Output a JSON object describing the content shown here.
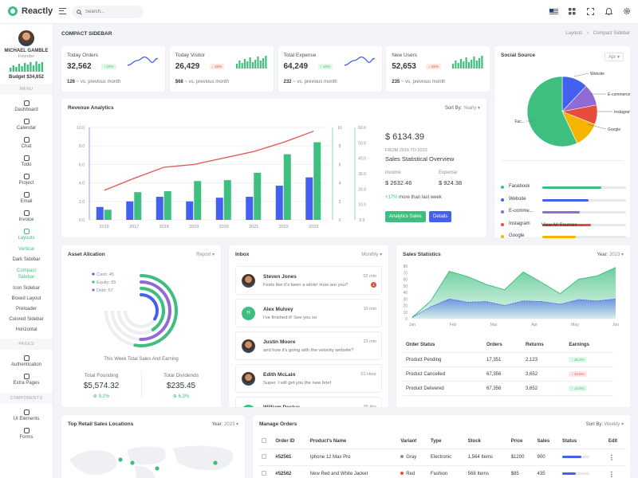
{
  "brand": {
    "name": "Reactly",
    "accent": "#3fbf7f"
  },
  "search": {
    "placeholder": "Search..."
  },
  "user": {
    "name": "MICHAEL GAMBLE",
    "role": "Founder",
    "budget": "Budget $34,652"
  },
  "sidebar": {
    "menu_label": "MENU",
    "items": [
      {
        "label": "Dashboard",
        "icon": "dashboard-icon"
      },
      {
        "label": "Calendar",
        "icon": "calendar-icon"
      },
      {
        "label": "Chat",
        "icon": "chat-icon"
      },
      {
        "label": "Todo",
        "icon": "todo-icon"
      },
      {
        "label": "Project",
        "icon": "project-icon"
      },
      {
        "label": "Email",
        "icon": "email-icon"
      },
      {
        "label": "Invoice",
        "icon": "invoice-icon"
      },
      {
        "label": "Layouts",
        "icon": "layouts-icon"
      }
    ],
    "layout_sub": [
      "Vertical",
      "Dark Sidebar",
      "Compact Sidebar",
      "Icon Sidebar",
      "Boxed Layout",
      "Preloader",
      "Colored Sidebar",
      "Horizontal"
    ],
    "pages_label": "PAGES",
    "pages": [
      {
        "label": "Authentication",
        "icon": "lock-icon"
      },
      {
        "label": "Extra Pages",
        "icon": "pages-icon"
      }
    ],
    "components_label": "COMPONENTS",
    "components": [
      {
        "label": "UI Elements",
        "icon": "ui-elements-icon"
      },
      {
        "label": "Forms",
        "icon": "forms-icon"
      }
    ]
  },
  "page": {
    "title": "COMPACT SIDEBAR",
    "breadcrumb": [
      "Layouts",
      "Compact Sidebar"
    ],
    "breadcrumb_sep": "›"
  },
  "stats": [
    {
      "label": "Today Orders",
      "value": "32,562",
      "badge": "↑ 10%",
      "dir": "up",
      "foot_num": "126",
      "foot_text": " ~ vs. previous month",
      "spark": "line",
      "color": "#4361ee"
    },
    {
      "label": "Today Visitor",
      "value": "26,429",
      "badge": "↓ 22%",
      "dir": "down",
      "foot_num": "$68",
      "foot_text": " ~ vs. previous month",
      "spark": "bars",
      "color": "#3fbf7f"
    },
    {
      "label": "Total Expense",
      "value": "64,249",
      "badge": "↑ 10%",
      "dir": "up",
      "foot_num": "232",
      "foot_text": " ~ vs. previous month",
      "spark": "line",
      "color": "#4361ee"
    },
    {
      "label": "New Users",
      "value": "52,653",
      "badge": "↓ 42%",
      "dir": "down",
      "foot_num": "235",
      "foot_text": " ~ vs. previous month",
      "spark": "bars",
      "color": "#3fbf7f"
    }
  ],
  "social": {
    "title": "Social Source",
    "period": "Apr",
    "rows": [
      {
        "name": "Facebook",
        "color": "#3fbf7f",
        "pct": 0.7
      },
      {
        "name": "Website",
        "color": "#4361ee",
        "pct": 0.55
      },
      {
        "name": "E-comme...",
        "color": "#8e6bd6",
        "pct": 0.45
      },
      {
        "name": "Instagram",
        "color": "#e74c3c",
        "pct": 0.58
      },
      {
        "name": "Google",
        "color": "#f4b400",
        "pct": 0.4
      }
    ],
    "link": "View All Sources →"
  },
  "revenue": {
    "title": "Revenue Analytics",
    "sort_label": "Sort By:",
    "sort_value": "Yearly",
    "amount": "$ 6134.39",
    "range": "FROM 2016 TO 2023",
    "subtitle": "Sales Statistical Overview",
    "income_label": "Income",
    "income": "$ 2632.46",
    "expense_label": "Expense",
    "expense": "$ 924.38",
    "growth": "+17%",
    "growth_text": " more than last week",
    "btn1": "Analytics Sales",
    "btn2": "Details"
  },
  "asset": {
    "title": "Asset Allcation",
    "menu": "Report",
    "legend": [
      "Cash: 45",
      "Equity: 55",
      "Debt: 67"
    ],
    "caption": "This Week Total Sales And Earning",
    "left_label": "Total Founding",
    "left_value": "$5,574.32",
    "left_pct": "9.2%",
    "right_label": "Total Dividends",
    "right_value": "$235.45",
    "right_pct": "6.3%"
  },
  "inbox": {
    "title": "Inbox",
    "period": "Monthly",
    "items": [
      {
        "name": "Steven Jones",
        "msg": "Feels like it's been a while! How are you?",
        "time": "02 min",
        "badge": "1",
        "avatar": "photo"
      },
      {
        "name": "Alex Mulvey",
        "msg": "I've finished it! See you so",
        "time": "10 min",
        "avatar": "H"
      },
      {
        "name": "Justin Moore",
        "msg": "and how it's going with the velocity website?",
        "time": "22 min",
        "avatar": "photo"
      },
      {
        "name": "Edith McLain",
        "msg": "Super, I will get you the new brief",
        "time": "01 Hour",
        "avatar": "photo"
      },
      {
        "name": "William Declue",
        "msg": "",
        "time": "05 Hrs",
        "avatar": "W"
      }
    ]
  },
  "sales": {
    "title": "Sales Statistics",
    "year_label": "Year:",
    "year": "2023",
    "headers": [
      "Order Status",
      "Orders",
      "Returns",
      "Earnings"
    ],
    "rows": [
      {
        "status": "Product Pending",
        "orders": "17,351",
        "returns": "2,123",
        "earn": "↑ 45.3%",
        "dir": "up"
      },
      {
        "status": "Product Cancelled",
        "orders": "67,356",
        "returns": "3,652",
        "earn": "↓ 14.6%",
        "dir": "down"
      },
      {
        "status": "Product Delivered",
        "orders": "67,356",
        "returns": "3,652",
        "earn": "↑ 14.6%",
        "dir": "up"
      }
    ]
  },
  "retail": {
    "title": "Top Retail Sales Locations",
    "year_label": "Year:",
    "year": "2023"
  },
  "orders": {
    "title": "Manage Orders",
    "sort_label": "Sort By:",
    "sort_value": "Weekly",
    "headers": [
      "",
      "Order ID",
      "Product's Name",
      "Variant",
      "Type",
      "Stock",
      "Price",
      "Sales",
      "Status",
      "Edit"
    ],
    "rows": [
      {
        "id": "#52561",
        "name": "Iphone 12 Max Pro",
        "variant": "Gray",
        "vcolor": "#8a8f98",
        "type": "Electronic",
        "stock": "1,564 Items",
        "price": "$1200",
        "sales": "900",
        "status": 0.7
      },
      {
        "id": "#52562",
        "name": "New Red and White Jacket",
        "variant": "Red",
        "vcolor": "#e74c3c",
        "type": "Fashion",
        "stock": "568 Items",
        "price": "$85",
        "sales": "435",
        "status": 0.5
      }
    ]
  },
  "chart_data": [
    {
      "type": "bar",
      "title": "Revenue Analytics",
      "categories": [
        "2016",
        "2017",
        "2018",
        "2019",
        "2020",
        "2021",
        "2022",
        "2023"
      ],
      "series": [
        {
          "color": "#4361ee",
          "values": [
            1.4,
            2,
            2.5,
            2,
            2.4,
            2.5,
            3.7,
            4.6
          ]
        },
        {
          "color": "#3fbf7f",
          "values": [
            1.1,
            3,
            3.1,
            4.2,
            4.3,
            5.1,
            7.1,
            8.4
          ]
        },
        {
          "color": "#e35d5d",
          "type": "line",
          "values": [
            3.2,
            4.5,
            5.7,
            6,
            6.7,
            7.4,
            8.4,
            9.6
          ]
        }
      ],
      "ylim": [
        0,
        10
      ],
      "yticks": [
        "0.0",
        "2.0",
        "4.0",
        "6.0",
        "8.0",
        "10.0"
      ],
      "y2ticks": [
        "0",
        "2",
        "4",
        "6",
        "8",
        "10"
      ],
      "y3ticks": [
        "0.0",
        "10.0",
        "20.0",
        "30.0",
        "40.0",
        "50.0",
        "60.0"
      ]
    },
    {
      "type": "pie",
      "title": "Social Source",
      "slices": [
        {
          "label": "Facebook",
          "value": 57,
          "color": "#3fbf7f"
        },
        {
          "label": "Website",
          "value": 12,
          "color": "#4361ee"
        },
        {
          "label": "E-commerce",
          "value": 10,
          "color": "#8e6bd6"
        },
        {
          "label": "Instagram",
          "value": 9,
          "color": "#e74c3c"
        },
        {
          "label": "Google",
          "value": 12,
          "color": "#f4b400"
        }
      ],
      "labels": [
        "Website",
        "E-commerce",
        "Instagram",
        "Google",
        "Fac..."
      ]
    },
    {
      "type": "area",
      "title": "Sales Statistics",
      "categories": [
        "Jan",
        "Feb",
        "Mar",
        "Apr",
        "May",
        "Jun",
        "Jul",
        "Aug",
        "Sep",
        "Oct",
        "Nov",
        "Dec"
      ],
      "series": [
        {
          "color": "#3fbf7f",
          "values": [
            2,
            27,
            72,
            64,
            52,
            44,
            71,
            55,
            38,
            60,
            65,
            78
          ]
        },
        {
          "color": "#4361ee",
          "values": [
            2,
            18,
            30,
            25,
            26,
            20,
            27,
            26,
            22,
            29,
            27,
            30
          ]
        }
      ],
      "ylim": [
        0,
        80
      ],
      "yticks": [
        "0",
        "10",
        "20",
        "30",
        "40",
        "50",
        "60",
        "70",
        "80"
      ]
    },
    {
      "type": "radial",
      "title": "Asset Allcation",
      "series": [
        {
          "name": "Cash",
          "value": 45,
          "color": "#4361ee"
        },
        {
          "name": "Equity",
          "value": 55,
          "color": "#3fbf7f"
        },
        {
          "name": "Debt",
          "value": 67,
          "color": "#8e6bd6"
        }
      ]
    }
  ]
}
